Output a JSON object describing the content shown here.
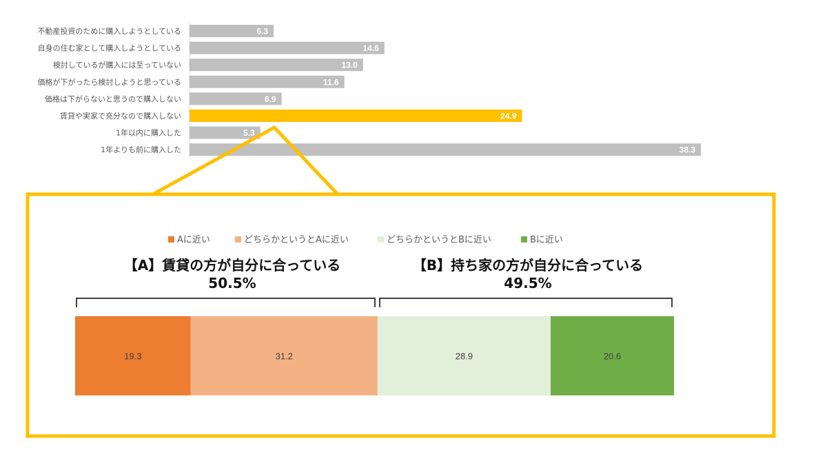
{
  "chart_data": [
    {
      "type": "bar",
      "orientation": "horizontal",
      "categories": [
        "不動産投資のために購入しようとしている",
        "自身の住む家として購入しようとしている",
        "検討しているが購入には至っていない",
        "価格が下がったら検討しようと思っている",
        "価格は下がらないと思うので購入しない",
        "賃貸や実家で充分なので購入しない",
        "1年以内に購入した",
        "1年よりも前に購入した"
      ],
      "values": [
        6.3,
        14.6,
        13.0,
        11.6,
        6.9,
        24.9,
        5.3,
        38.3
      ],
      "labels": [
        "6.3",
        "14.6",
        "13.0",
        "11.6",
        "6.9",
        "24.9",
        "5.3",
        "38.3"
      ],
      "highlight_index": 5,
      "colors": {
        "default": "#BFBFBF",
        "highlight": "#FFC000"
      },
      "xlim": [
        0,
        40
      ]
    },
    {
      "type": "bar",
      "orientation": "horizontal",
      "stacked": true,
      "legend": [
        "Aに近い",
        "どちらかというとAに近い",
        "どちらかというとBに近い",
        "Bに近い"
      ],
      "legend_placement": "top",
      "series": [
        {
          "name": "Aに近い",
          "value": 19.3,
          "label": "19.3",
          "color": "#ED7D31"
        },
        {
          "name": "どちらかというとAに近い",
          "value": 31.2,
          "label": "31.2",
          "color": "#F4B183"
        },
        {
          "name": "どちらかというとBに近い",
          "value": 28.9,
          "label": "28.9",
          "color": "#E2EFDA"
        },
        {
          "name": "Bに近い",
          "value": 20.6,
          "label": "20.6",
          "color": "#70AD47"
        }
      ],
      "annotations": {
        "a_title": "【A】賃貸の方が自分に合っている",
        "a_total": "50.5%",
        "b_title": "【B】持ち家の方が自分に合っている",
        "b_total": "49.5%"
      },
      "callout_color": "#FFC000"
    }
  ]
}
